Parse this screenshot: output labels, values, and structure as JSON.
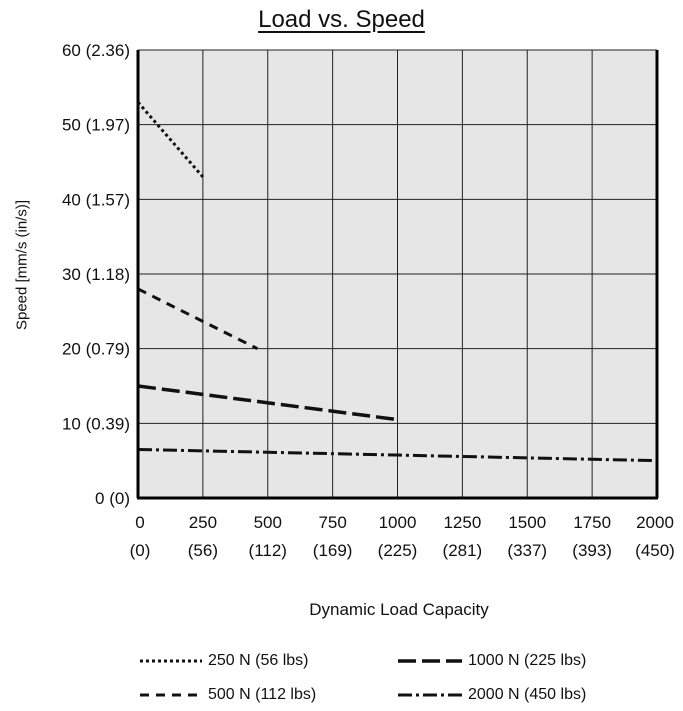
{
  "chart_data": {
    "type": "line",
    "title": "Load vs. Speed",
    "xlabel": "Dynamic Load Capacity",
    "ylabel": "Speed [mm/s (in/s)]",
    "xlim": [
      0,
      2000
    ],
    "ylim": [
      0,
      60
    ],
    "x_ticks": [
      {
        "value": 0,
        "label": "0",
        "sublabel": "(0)"
      },
      {
        "value": 250,
        "label": "250",
        "sublabel": "(56)"
      },
      {
        "value": 500,
        "label": "500",
        "sublabel": "(112)"
      },
      {
        "value": 750,
        "label": "750",
        "sublabel": "(169)"
      },
      {
        "value": 1000,
        "label": "1000",
        "sublabel": "(225)"
      },
      {
        "value": 1250,
        "label": "1250",
        "sublabel": "(281)"
      },
      {
        "value": 1500,
        "label": "1500",
        "sublabel": "(337)"
      },
      {
        "value": 1750,
        "label": "1750",
        "sublabel": "(393)"
      },
      {
        "value": 2000,
        "label": "2000",
        "sublabel": "(450)"
      }
    ],
    "y_ticks": [
      {
        "value": 0,
        "label": "0 (0)"
      },
      {
        "value": 10,
        "label": "10 (0.39)"
      },
      {
        "value": 20,
        "label": "20 (0.79)"
      },
      {
        "value": 30,
        "label": "30 (1.18)"
      },
      {
        "value": 40,
        "label": "40 (1.57)"
      },
      {
        "value": 50,
        "label": "50 (1.97)"
      },
      {
        "value": 60,
        "label": "60 (2.36)"
      }
    ],
    "grid": true,
    "legend_position": "bottom",
    "series": [
      {
        "name": "250 N (56 lbs)",
        "style": "dotted",
        "x": [
          0,
          250
        ],
        "y": [
          53,
          43
        ]
      },
      {
        "name": "500 N (112 lbs)",
        "style": "dashed",
        "x": [
          0,
          460
        ],
        "y": [
          28,
          20
        ]
      },
      {
        "name": "1000 N (225 lbs)",
        "style": "long-dash",
        "x": [
          0,
          1000
        ],
        "y": [
          15,
          10.5
        ]
      },
      {
        "name": "2000 N (450 lbs)",
        "style": "dash-dot",
        "x": [
          0,
          2000
        ],
        "y": [
          6.5,
          5
        ]
      }
    ]
  }
}
